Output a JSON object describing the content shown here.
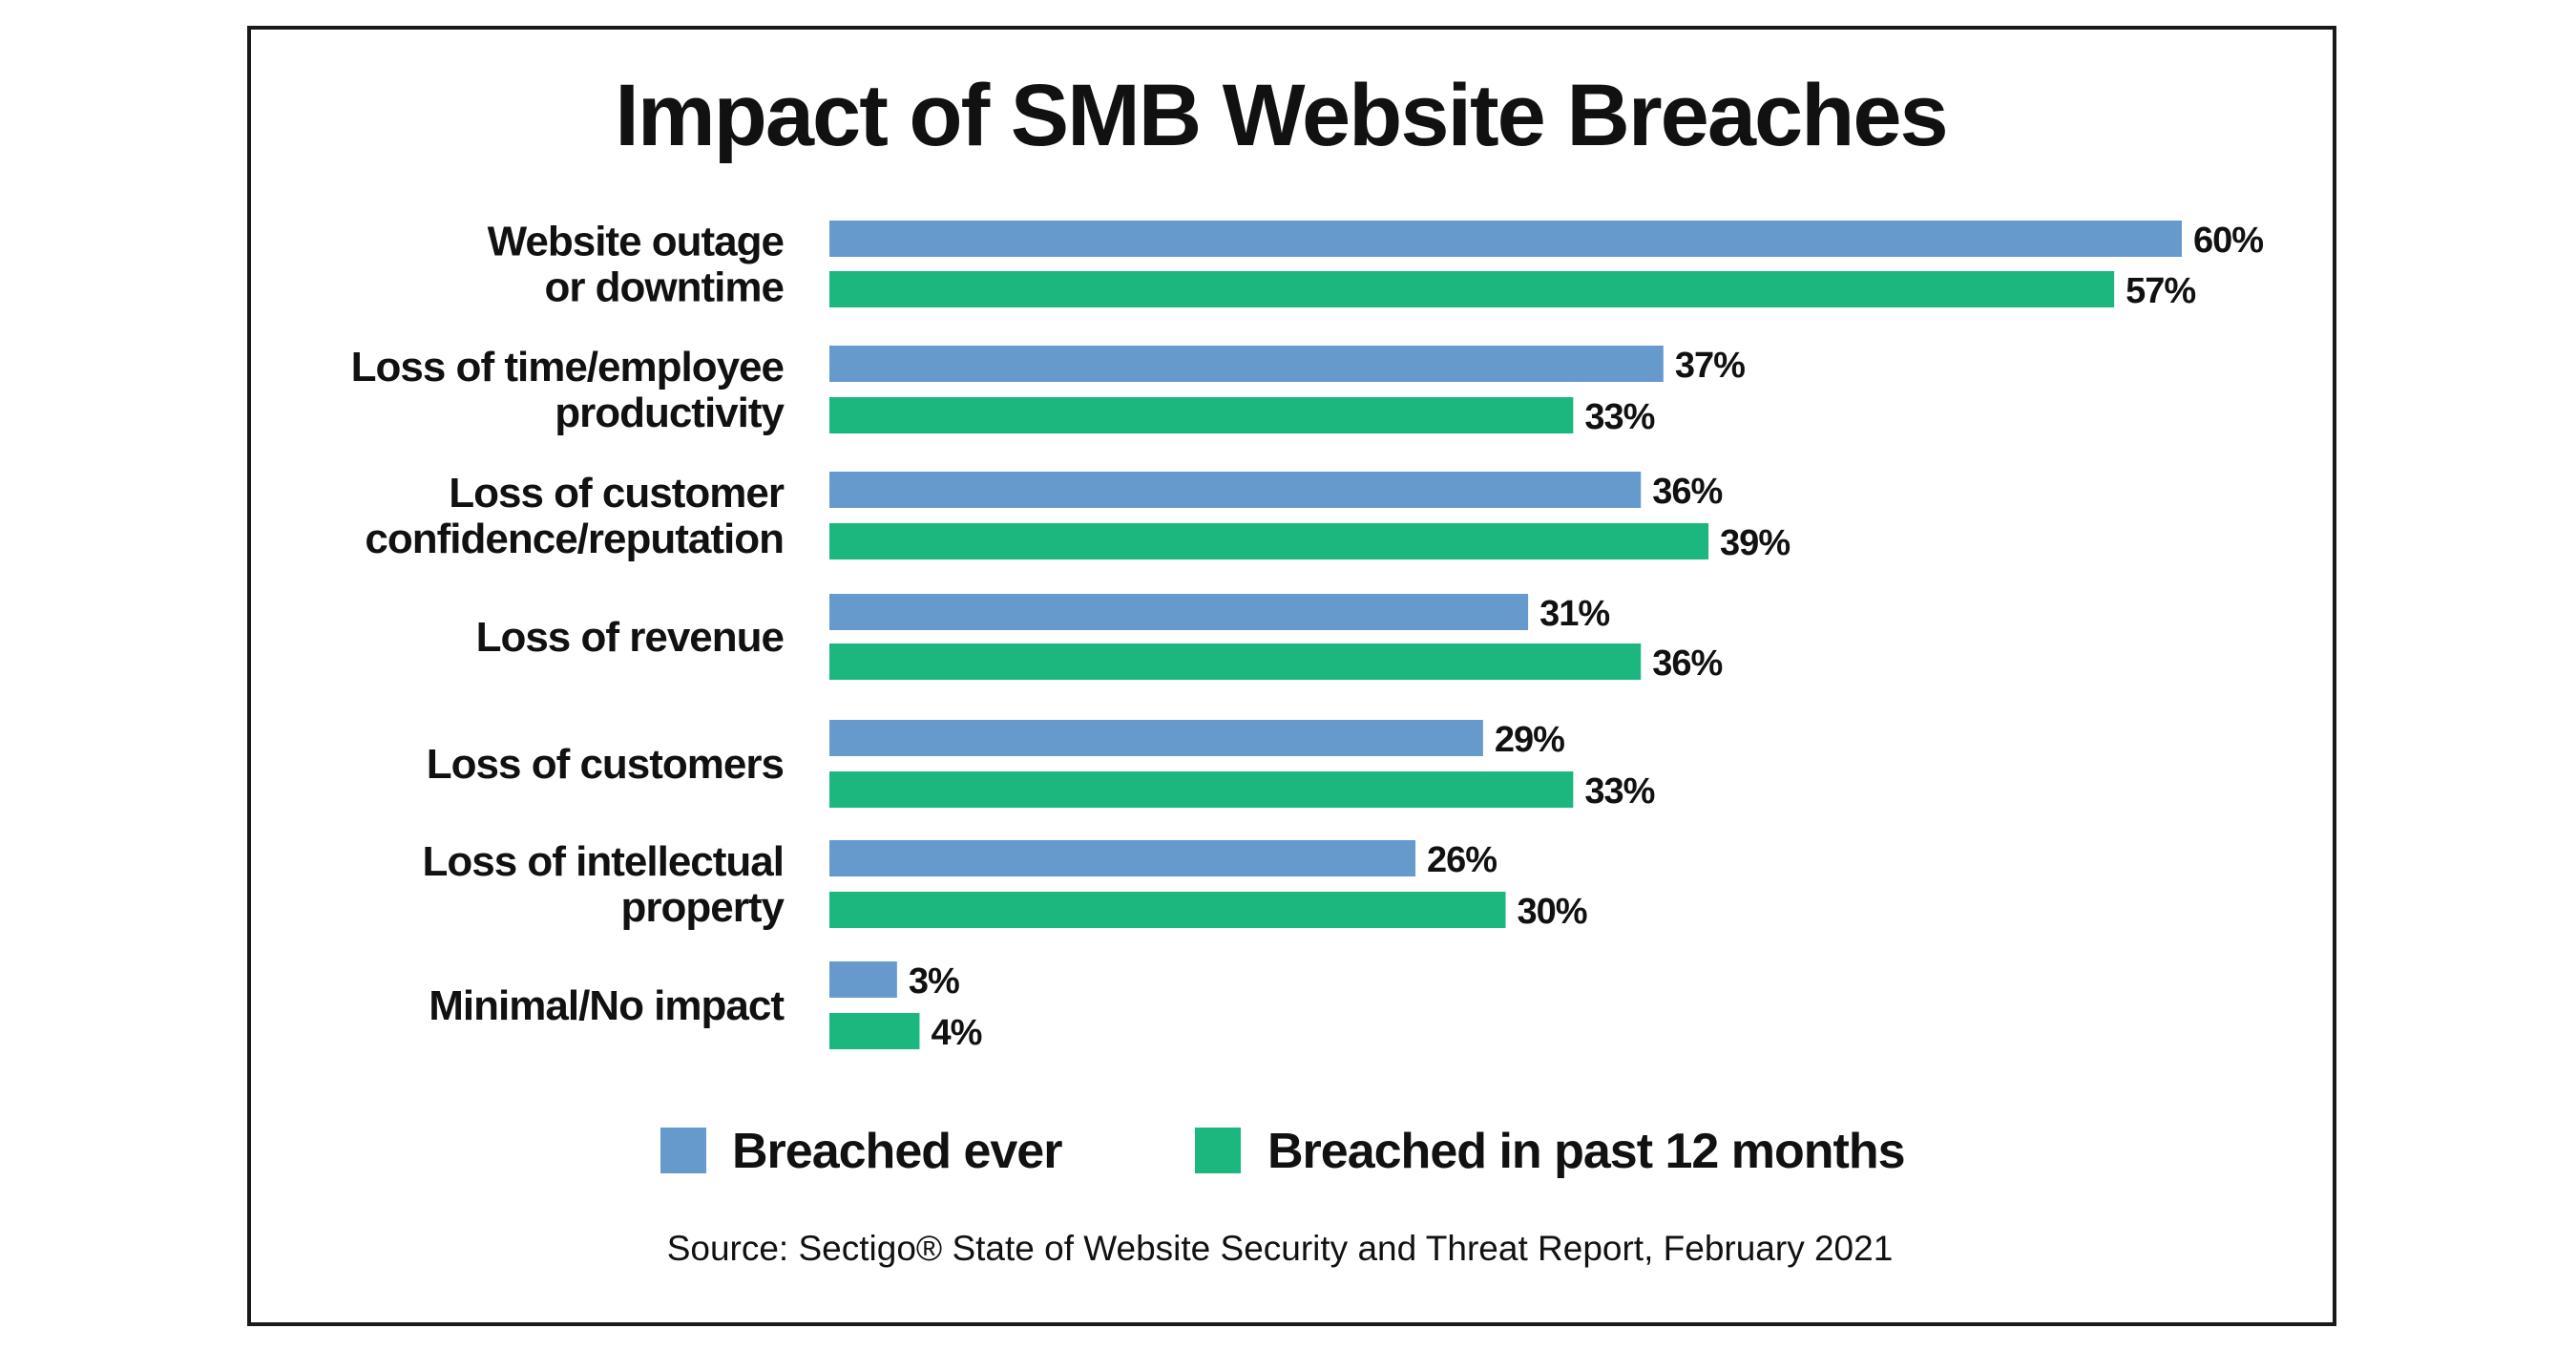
{
  "chart_data": {
    "type": "bar",
    "orientation": "horizontal",
    "title": "Impact of SMB Website Breaches",
    "categories": [
      [
        "Website outage",
        "or downtime"
      ],
      [
        "Loss of time/employee",
        "productivity"
      ],
      [
        "Loss of customer",
        "confidence/reputation"
      ],
      [
        "Loss of revenue"
      ],
      [
        "Loss of customers"
      ],
      [
        "Loss of intellectual",
        "property"
      ],
      [
        "Minimal/No impact"
      ]
    ],
    "series": [
      {
        "name": "Breached ever",
        "color": "#6699cc",
        "values": [
          60,
          37,
          36,
          31,
          29,
          26,
          3
        ],
        "labels": [
          "60%",
          "37%",
          "36%",
          "31%",
          "29%",
          "26%",
          "3%"
        ]
      },
      {
        "name": "Breached in past 12 months",
        "color": "#1bb77f",
        "values": [
          57,
          33,
          39,
          36,
          33,
          30,
          4
        ],
        "labels": [
          "57%",
          "33%",
          "39%",
          "36%",
          "33%",
          "30%",
          "4%"
        ]
      }
    ],
    "xlim": [
      0,
      60
    ],
    "grid": false,
    "axes_visible": false,
    "legend_position": "bottom",
    "source": "Source: Sectigo® State of Website Security and Threat Report, February 2021"
  }
}
